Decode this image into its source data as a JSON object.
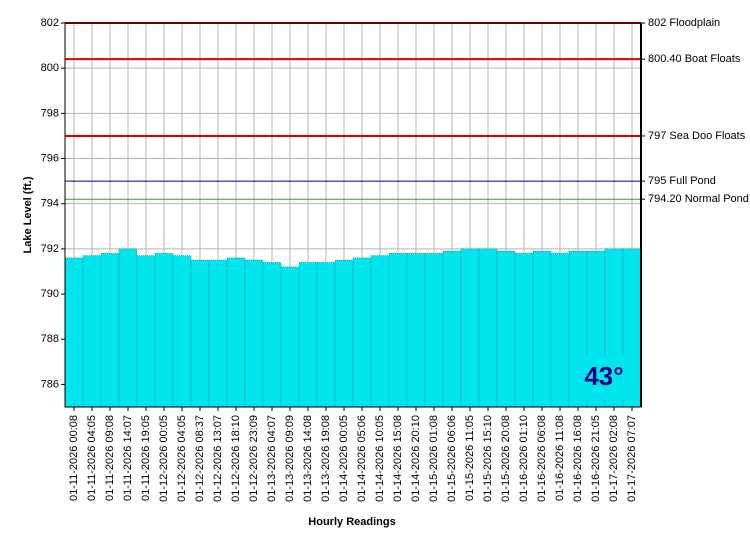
{
  "chart_data": {
    "type": "bar",
    "y_label": "Lake Level (ft.)",
    "x_label": "Hourly Readings",
    "categories": [
      "01-11-2026 00:08",
      "01-11-2026 04:05",
      "01-11-2026 09:08",
      "01-11-2026 14:07",
      "01-11-2026 19:05",
      "01-12-2026 00:05",
      "01-12-2026 04:05",
      "01-12-2026 08:37",
      "01-12-2026 13:07",
      "01-12-2026 18:10",
      "01-12-2026 23:09",
      "01-13-2026 04:07",
      "01-13-2026 09:09",
      "01-13-2026 14:08",
      "01-13-2026 19:08",
      "01-14-2026 00:05",
      "01-14-2026 05:06",
      "01-14-2026 10:05",
      "01-14-2026 15:08",
      "01-14-2026 20:10",
      "01-15-2026 01:08",
      "01-15-2026 06:06",
      "01-15-2026 11:05",
      "01-15-2026 15:10",
      "01-15-2026 20:08",
      "01-16-2026 01:10",
      "01-16-2026 06:08",
      "01-16-2026 11:08",
      "01-16-2026 16:08",
      "01-16-2026 21:05",
      "01-17-2026 02:08",
      "01-17-2026 07:07"
    ],
    "values": [
      791.6,
      791.7,
      791.8,
      792.0,
      791.7,
      791.8,
      791.7,
      791.5,
      791.5,
      791.6,
      791.5,
      791.4,
      791.2,
      791.4,
      791.4,
      791.5,
      791.6,
      791.7,
      791.8,
      791.8,
      791.8,
      791.9,
      792.0,
      792.0,
      791.9,
      791.8,
      791.9,
      791.8,
      791.9,
      791.9,
      792.0,
      792.0
    ],
    "color": "#00e5ee",
    "ylim": [
      785,
      802
    ],
    "yticks": [
      786,
      788,
      790,
      792,
      794,
      796,
      798,
      800,
      802
    ],
    "grid": true,
    "reference_lines": [
      {
        "value": 802,
        "label": "802 Floodplain",
        "color": "#e00000"
      },
      {
        "value": 800.4,
        "label": "800.40 Boat Floats",
        "color": "#e00000"
      },
      {
        "value": 797,
        "label": "797 Sea Doo Floats",
        "color": "#e00000"
      },
      {
        "value": 795,
        "label": "795 Full Pond",
        "color": "#000080"
      },
      {
        "value": 794.2,
        "label": "794.20 Normal Pond",
        "color": "#3a9a3a"
      }
    ],
    "badge": "43°"
  }
}
